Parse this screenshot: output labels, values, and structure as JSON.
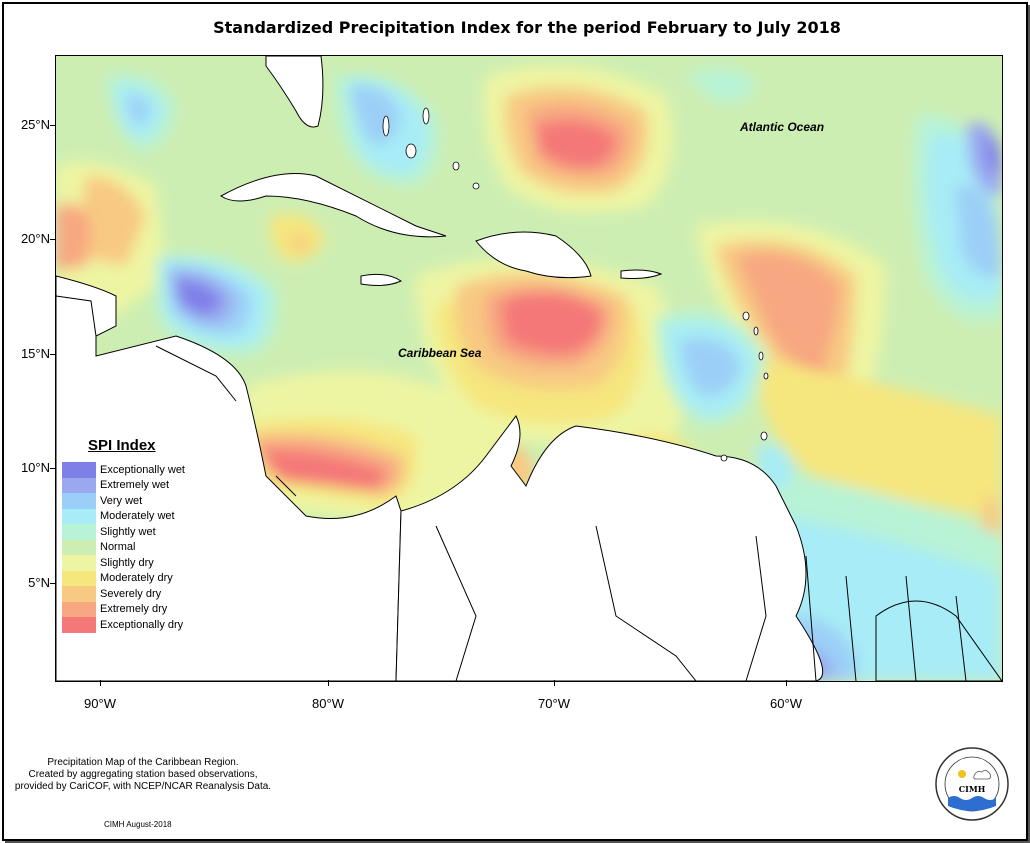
{
  "title": "Standardized Precipitation Index for the period February to July 2018",
  "axes": {
    "lat_labels": [
      "25°N",
      "20°N",
      "15°N",
      "10°N",
      "5°N"
    ],
    "lon_labels": [
      "90°W",
      "80°W",
      "70°W",
      "60°W"
    ]
  },
  "map_labels": {
    "atlantic": "Atlantic Ocean",
    "caribbean": "Caribbean Sea"
  },
  "legend": {
    "title": "SPI Index",
    "items": [
      {
        "label": "Exceptionally wet",
        "color": "#7f7fe8"
      },
      {
        "label": "Extremely wet",
        "color": "#9aa8f0"
      },
      {
        "label": "Very wet",
        "color": "#9ccff7"
      },
      {
        "label": "Moderately wet",
        "color": "#a7ecf6"
      },
      {
        "label": "Slightly wet",
        "color": "#b8f3d6"
      },
      {
        "label": "Normal",
        "color": "#cdeeb3"
      },
      {
        "label": "Slightly dry",
        "color": "#eef5a2"
      },
      {
        "label": "Moderately dry",
        "color": "#f6e67e"
      },
      {
        "label": "Severely dry",
        "color": "#f8c983"
      },
      {
        "label": "Extremely dry",
        "color": "#f7a781"
      },
      {
        "label": "Exceptionally dry",
        "color": "#f47878"
      }
    ]
  },
  "caption": {
    "line1": "Precipitation Map of the Caribbean Region.",
    "line2": "Created by aggregating station based observations,",
    "line3": "provided by CariCOF, with NCEP/NCAR Reanalysis Data."
  },
  "credit": "CIMH August-2018",
  "logo": {
    "text": "CIMH"
  }
}
